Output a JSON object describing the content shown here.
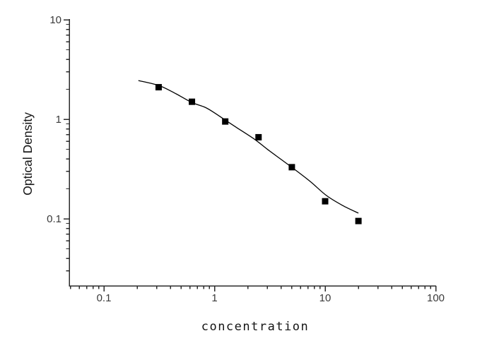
{
  "figure": {
    "background": "#ffffff"
  },
  "chart_data": {
    "type": "scatter",
    "title": "",
    "xlabel": "concentration",
    "ylabel": "Optical Density",
    "x_scale": "log",
    "y_scale": "log",
    "xlim": [
      0.049,
      100
    ],
    "ylim": [
      0.021,
      10
    ],
    "x_major_ticks": [
      0.1,
      1,
      10,
      100
    ],
    "x_tick_labels": [
      "0.1",
      "1",
      "10",
      "100"
    ],
    "y_major_ticks": [
      10,
      1,
      0.1
    ],
    "y_tick_labels": [
      "10",
      "1",
      "0.1"
    ],
    "grid": false,
    "legend": false,
    "series": [
      {
        "name": "standard-points",
        "type": "scatter",
        "marker": "square",
        "marker_size": 9,
        "color": "#000000",
        "x": [
          0.3125,
          0.625,
          1.25,
          2.5,
          5,
          10,
          20
        ],
        "y": [
          2.1,
          1.5,
          0.95,
          0.66,
          0.33,
          0.15,
          0.095
        ]
      },
      {
        "name": "fit-curve",
        "type": "line",
        "color": "#000000",
        "x": [
          0.205,
          0.315,
          0.45,
          0.62,
          0.82,
          1.0,
          1.27,
          1.6,
          2.3,
          3.0,
          4.0,
          5.0,
          7.3,
          10.3,
          14.4,
          20.0
        ],
        "y": [
          2.45,
          2.18,
          1.8,
          1.48,
          1.32,
          1.16,
          0.97,
          0.82,
          0.63,
          0.5,
          0.395,
          0.329,
          0.238,
          0.171,
          0.136,
          0.114
        ]
      }
    ],
    "colors": {
      "axis": "#2b2b2b",
      "tick_text": "#3a3a3a",
      "title_text": "#141414",
      "marker": "#000000",
      "curve": "#000000"
    }
  }
}
